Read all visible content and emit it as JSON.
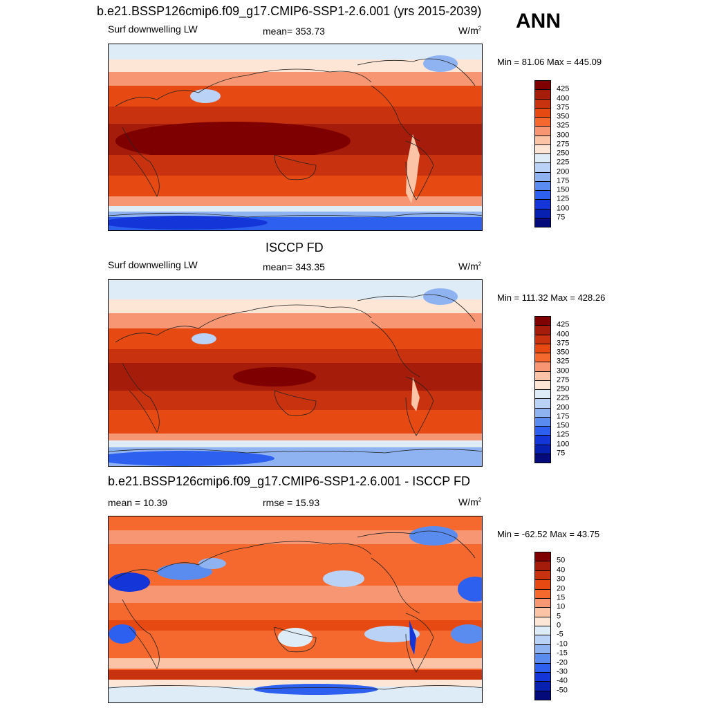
{
  "header": {
    "period_label": "ANN"
  },
  "panels": [
    {
      "title": "b.e21.BSSP126cmip6.f09_g17.CMIP6-SSP1-2.6.001 (yrs 2015-2039)",
      "left_label": "Surf downwelling LW",
      "center_label": "mean= 353.73",
      "units_base": "W/m",
      "units_exp": "2",
      "minmax": "Min =  81.06 Max = 445.09",
      "colorbar_levels": [
        "425",
        "400",
        "375",
        "350",
        "325",
        "300",
        "275",
        "250",
        "225",
        "200",
        "175",
        "150",
        "125",
        "100",
        "75"
      ]
    },
    {
      "title": "ISCCP FD",
      "left_label": "Surf downwelling LW",
      "center_label": "mean= 343.35",
      "units_base": "W/m",
      "units_exp": "2",
      "minmax": "Min = 111.32 Max = 428.26",
      "colorbar_levels": [
        "425",
        "400",
        "375",
        "350",
        "325",
        "300",
        "275",
        "250",
        "225",
        "200",
        "175",
        "150",
        "125",
        "100",
        "75"
      ]
    },
    {
      "title": "b.e21.BSSP126cmip6.f09_g17.CMIP6-SSP1-2.6.001 - ISCCP FD",
      "left_label": "mean =  10.39",
      "center_label": "rmse =  15.93",
      "units_base": "W/m",
      "units_exp": "2",
      "minmax": "Min = -62.52 Max =  43.75",
      "colorbar_levels": [
        "50",
        "40",
        "30",
        "20",
        "15",
        "10",
        "5",
        "0",
        "-5",
        "-10",
        "-15",
        "-20",
        "-30",
        "-40",
        "-50"
      ]
    }
  ],
  "colors": {
    "abs_scale": [
      "#7f0000",
      "#a51d0a",
      "#c8320f",
      "#e64a12",
      "#f5692e",
      "#f79672",
      "#fbc4a6",
      "#fde6d6",
      "#deecf8",
      "#b9d2f5",
      "#8fb3f1",
      "#5a8cf0",
      "#2e60f0",
      "#1436d8",
      "#0820b0",
      "#050a7a"
    ],
    "diff_scale": [
      "#7f0000",
      "#a51d0a",
      "#c8320f",
      "#e64a12",
      "#f5692e",
      "#f79672",
      "#fbc4a6",
      "#fde6d6",
      "#deecf8",
      "#b9d2f5",
      "#8fb3f1",
      "#5a8cf0",
      "#2e60f0",
      "#1436d8",
      "#0820b0",
      "#050a7a"
    ]
  },
  "chart_data": [
    {
      "type": "heatmap",
      "title": "b.e21.BSSP126cmip6.f09_g17.CMIP6-SSP1-2.6.001 (yrs 2015-2039)",
      "variable": "Surf downwelling LW",
      "units": "W/m2",
      "mean": 353.73,
      "min": 81.06,
      "max": 445.09,
      "levels": [
        75,
        100,
        125,
        150,
        175,
        200,
        225,
        250,
        275,
        300,
        325,
        350,
        375,
        400,
        425
      ]
    },
    {
      "type": "heatmap",
      "title": "ISCCP FD",
      "variable": "Surf downwelling LW",
      "units": "W/m2",
      "mean": 343.35,
      "min": 111.32,
      "max": 428.26,
      "levels": [
        75,
        100,
        125,
        150,
        175,
        200,
        225,
        250,
        275,
        300,
        325,
        350,
        375,
        400,
        425
      ]
    },
    {
      "type": "heatmap",
      "title": "b.e21.BSSP126cmip6.f09_g17.CMIP6-SSP1-2.6.001 - ISCCP FD",
      "units": "W/m2",
      "mean": 10.39,
      "rmse": 15.93,
      "min": -62.52,
      "max": 43.75,
      "levels": [
        -50,
        -40,
        -30,
        -20,
        -15,
        -10,
        -5,
        0,
        5,
        10,
        15,
        20,
        30,
        40,
        50
      ]
    }
  ]
}
